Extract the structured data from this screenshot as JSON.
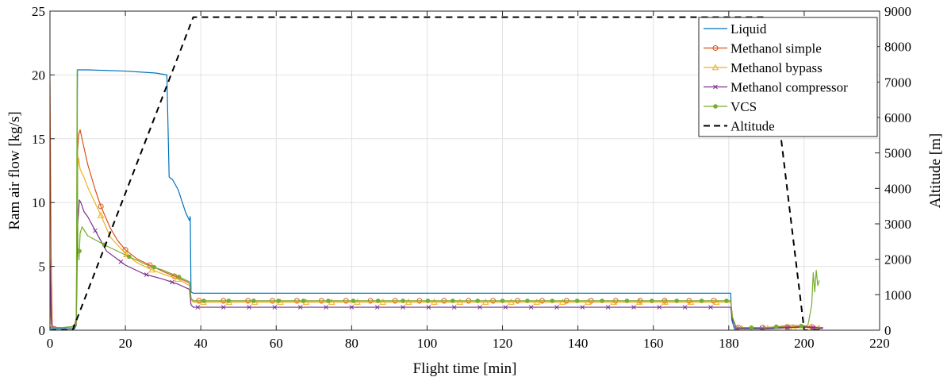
{
  "chart_data": {
    "type": "line",
    "xlabel": "Flight time [min]",
    "ylabel_left": "Ram air flow [kg/s]",
    "ylabel_right": "Altitude [m]",
    "xlim": [
      0,
      220
    ],
    "ylim_left": [
      0,
      25
    ],
    "ylim_right": [
      0,
      9000
    ],
    "x_ticks": [
      0,
      20,
      40,
      60,
      80,
      100,
      120,
      140,
      160,
      180,
      200,
      220
    ],
    "y_left_ticks": [
      0,
      5,
      10,
      15,
      20,
      25
    ],
    "y_right_ticks": [
      0,
      1000,
      2000,
      3000,
      4000,
      5000,
      6000,
      7000,
      8000,
      9000
    ],
    "grid": true,
    "legend_position": "top-right",
    "series": [
      {
        "name": "Liquid",
        "color": "#0072BD",
        "marker": "none",
        "axis": "left",
        "x": [
          0,
          0.3,
          1,
          3,
          5,
          6.5,
          7,
          7.3,
          7.6,
          10,
          20,
          28,
          31,
          31.3,
          31.6,
          32.5,
          34,
          36,
          37,
          37.2,
          37.4,
          38,
          60,
          100,
          150,
          180.5,
          180.8,
          181.5,
          184,
          190,
          197,
          200,
          202,
          204,
          205
        ],
        "y": [
          0.2,
          0.15,
          0.1,
          0.1,
          0.1,
          0.1,
          0.4,
          20.4,
          20.4,
          20.4,
          20.3,
          20.15,
          20.0,
          16,
          12,
          11.8,
          11,
          9.2,
          8.6,
          8.9,
          3.0,
          2.9,
          2.9,
          2.9,
          2.9,
          2.9,
          0.8,
          0.1,
          0.1,
          0.1,
          0.2,
          0.25,
          0.15,
          0.1,
          0.2
        ]
      },
      {
        "name": "Methanol simple",
        "color": "#D95319",
        "marker": "circle",
        "axis": "left",
        "x": [
          0,
          0.3,
          0.6,
          1,
          2,
          4,
          6.5,
          7,
          7.3,
          7.6,
          8,
          8.5,
          10,
          12,
          13.5,
          16,
          18,
          20,
          23,
          26.5,
          30,
          34,
          37,
          37.4,
          38,
          60,
          100,
          150,
          180.5,
          181,
          182,
          190,
          200,
          205
        ],
        "y": [
          19.5,
          6,
          0.3,
          0.3,
          0.2,
          0.2,
          0.3,
          1.0,
          14,
          15.3,
          15.7,
          15.0,
          13.0,
          11.0,
          9.7,
          8.0,
          7.0,
          6.3,
          5.6,
          5.1,
          4.6,
          4.1,
          3.7,
          2.5,
          2.3,
          2.3,
          2.3,
          2.3,
          2.3,
          1.0,
          0.2,
          0.2,
          0.3,
          0.2
        ]
      },
      {
        "name": "Methanol bypass",
        "color": "#EDB120",
        "marker": "triangle",
        "axis": "left",
        "x": [
          0,
          0.3,
          0.6,
          1,
          3,
          6.5,
          7,
          7.3,
          7.6,
          8,
          9,
          10,
          13.5,
          16,
          20,
          23,
          26.5,
          30,
          34,
          37,
          37.4,
          38,
          60,
          100,
          150,
          180.5,
          181,
          182,
          190,
          200,
          205
        ],
        "y": [
          6.3,
          0.5,
          0.2,
          0.2,
          0.2,
          0.2,
          0.5,
          12.5,
          13.5,
          12.6,
          12.0,
          11.2,
          9.0,
          7.3,
          6.0,
          5.3,
          4.8,
          4.4,
          4.0,
          3.5,
          2.4,
          2.2,
          2.2,
          2.2,
          2.2,
          2.2,
          0.9,
          0.15,
          0.15,
          0.2,
          0.15
        ]
      },
      {
        "name": "Methanol compressor",
        "color": "#7E2F8E",
        "marker": "x",
        "axis": "left",
        "x": [
          0,
          0.3,
          0.6,
          1,
          2,
          4,
          6,
          7,
          7.3,
          7.8,
          8.2,
          9,
          10,
          12,
          15,
          20,
          25,
          30,
          34,
          37,
          37.4,
          38,
          60,
          100,
          150,
          180.5,
          181,
          182,
          190,
          200,
          205
        ],
        "y": [
          5.6,
          1.0,
          0.2,
          0.2,
          0.2,
          0.2,
          0.3,
          0.6,
          8.0,
          10.2,
          10.0,
          9.3,
          8.9,
          7.8,
          6.2,
          5.1,
          4.4,
          4.0,
          3.6,
          3.2,
          2.0,
          1.8,
          1.8,
          1.8,
          1.8,
          1.8,
          0.8,
          0.15,
          0.15,
          0.25,
          0.15
        ]
      },
      {
        "name": "VCS",
        "color": "#77AC30",
        "marker": "dot",
        "axis": "left",
        "x": [
          0,
          0.3,
          1,
          3,
          6.5,
          7,
          7.2,
          7.4,
          7.7,
          8,
          8.5,
          10,
          15,
          20,
          25,
          30,
          34,
          37,
          37.4,
          38,
          60,
          100,
          150,
          180.5,
          181,
          182,
          190,
          197,
          200,
          201,
          202,
          202.4,
          202.8,
          203.2,
          203.6,
          204
        ],
        "y": [
          0.3,
          0.2,
          0.2,
          0.2,
          0.3,
          0.6,
          20.4,
          6.5,
          5.5,
          7.6,
          8.1,
          7.4,
          6.6,
          5.9,
          5.2,
          4.7,
          4.2,
          3.8,
          2.5,
          2.3,
          2.3,
          2.3,
          2.3,
          2.3,
          1.0,
          0.2,
          0.2,
          0.4,
          0.3,
          0.4,
          2.0,
          4.5,
          3.0,
          4.7,
          3.5,
          3.9
        ]
      },
      {
        "name": "Altitude",
        "color": "#000000",
        "marker": "none",
        "dashed": true,
        "axis": "right",
        "x": [
          0,
          4,
          6,
          38,
          190,
          200,
          202,
          205
        ],
        "y": [
          0,
          0,
          0,
          8830,
          8830,
          0,
          0,
          0
        ]
      }
    ]
  }
}
